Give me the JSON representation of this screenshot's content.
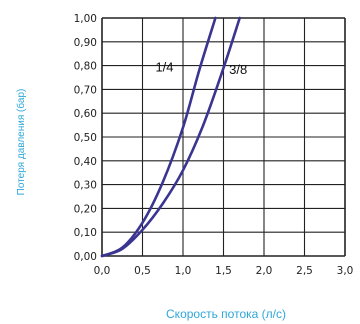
{
  "chart_data": {
    "type": "line",
    "title": "",
    "xlabel": "Скорость потока (л/с)",
    "ylabel": "Потеря давления (бар)",
    "xlim": [
      0,
      3.0
    ],
    "ylim": [
      0,
      1.0
    ],
    "x_ticks": [
      "0,0",
      "0,5",
      "1,0",
      "1,5",
      "2,0",
      "2,5",
      "3,0"
    ],
    "y_ticks": [
      "0,00",
      "0,10",
      "0,20",
      "0,30",
      "0,40",
      "0,50",
      "0,60",
      "0,70",
      "0,80",
      "0,90",
      "1,00"
    ],
    "grid": true,
    "series": [
      {
        "name": "1/4",
        "x": [
          0,
          0.25,
          0.5,
          0.75,
          1.0,
          1.2,
          1.4
        ],
        "y": [
          0,
          0.035,
          0.14,
          0.31,
          0.54,
          0.78,
          1.0
        ]
      },
      {
        "name": "3/8",
        "x": [
          0,
          0.25,
          0.5,
          0.75,
          1.0,
          1.25,
          1.5,
          1.7
        ],
        "y": [
          0,
          0.03,
          0.11,
          0.22,
          0.36,
          0.55,
          0.79,
          1.0
        ]
      }
    ]
  },
  "colors": {
    "line": "#3a3590",
    "grid": "#222222",
    "axis_title": "#2fa7d9"
  }
}
